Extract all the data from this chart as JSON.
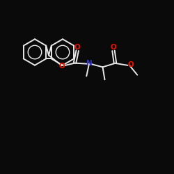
{
  "background_color": "#0a0a0a",
  "bond_color": "#e8e8e8",
  "oxygen_color": "#ee1100",
  "nitrogen_color": "#3333cc",
  "line_width": 1.4,
  "fig_width": 2.5,
  "fig_height": 2.5,
  "dpi": 100,
  "xlim": [
    0,
    10
  ],
  "ylim": [
    0,
    10
  ]
}
